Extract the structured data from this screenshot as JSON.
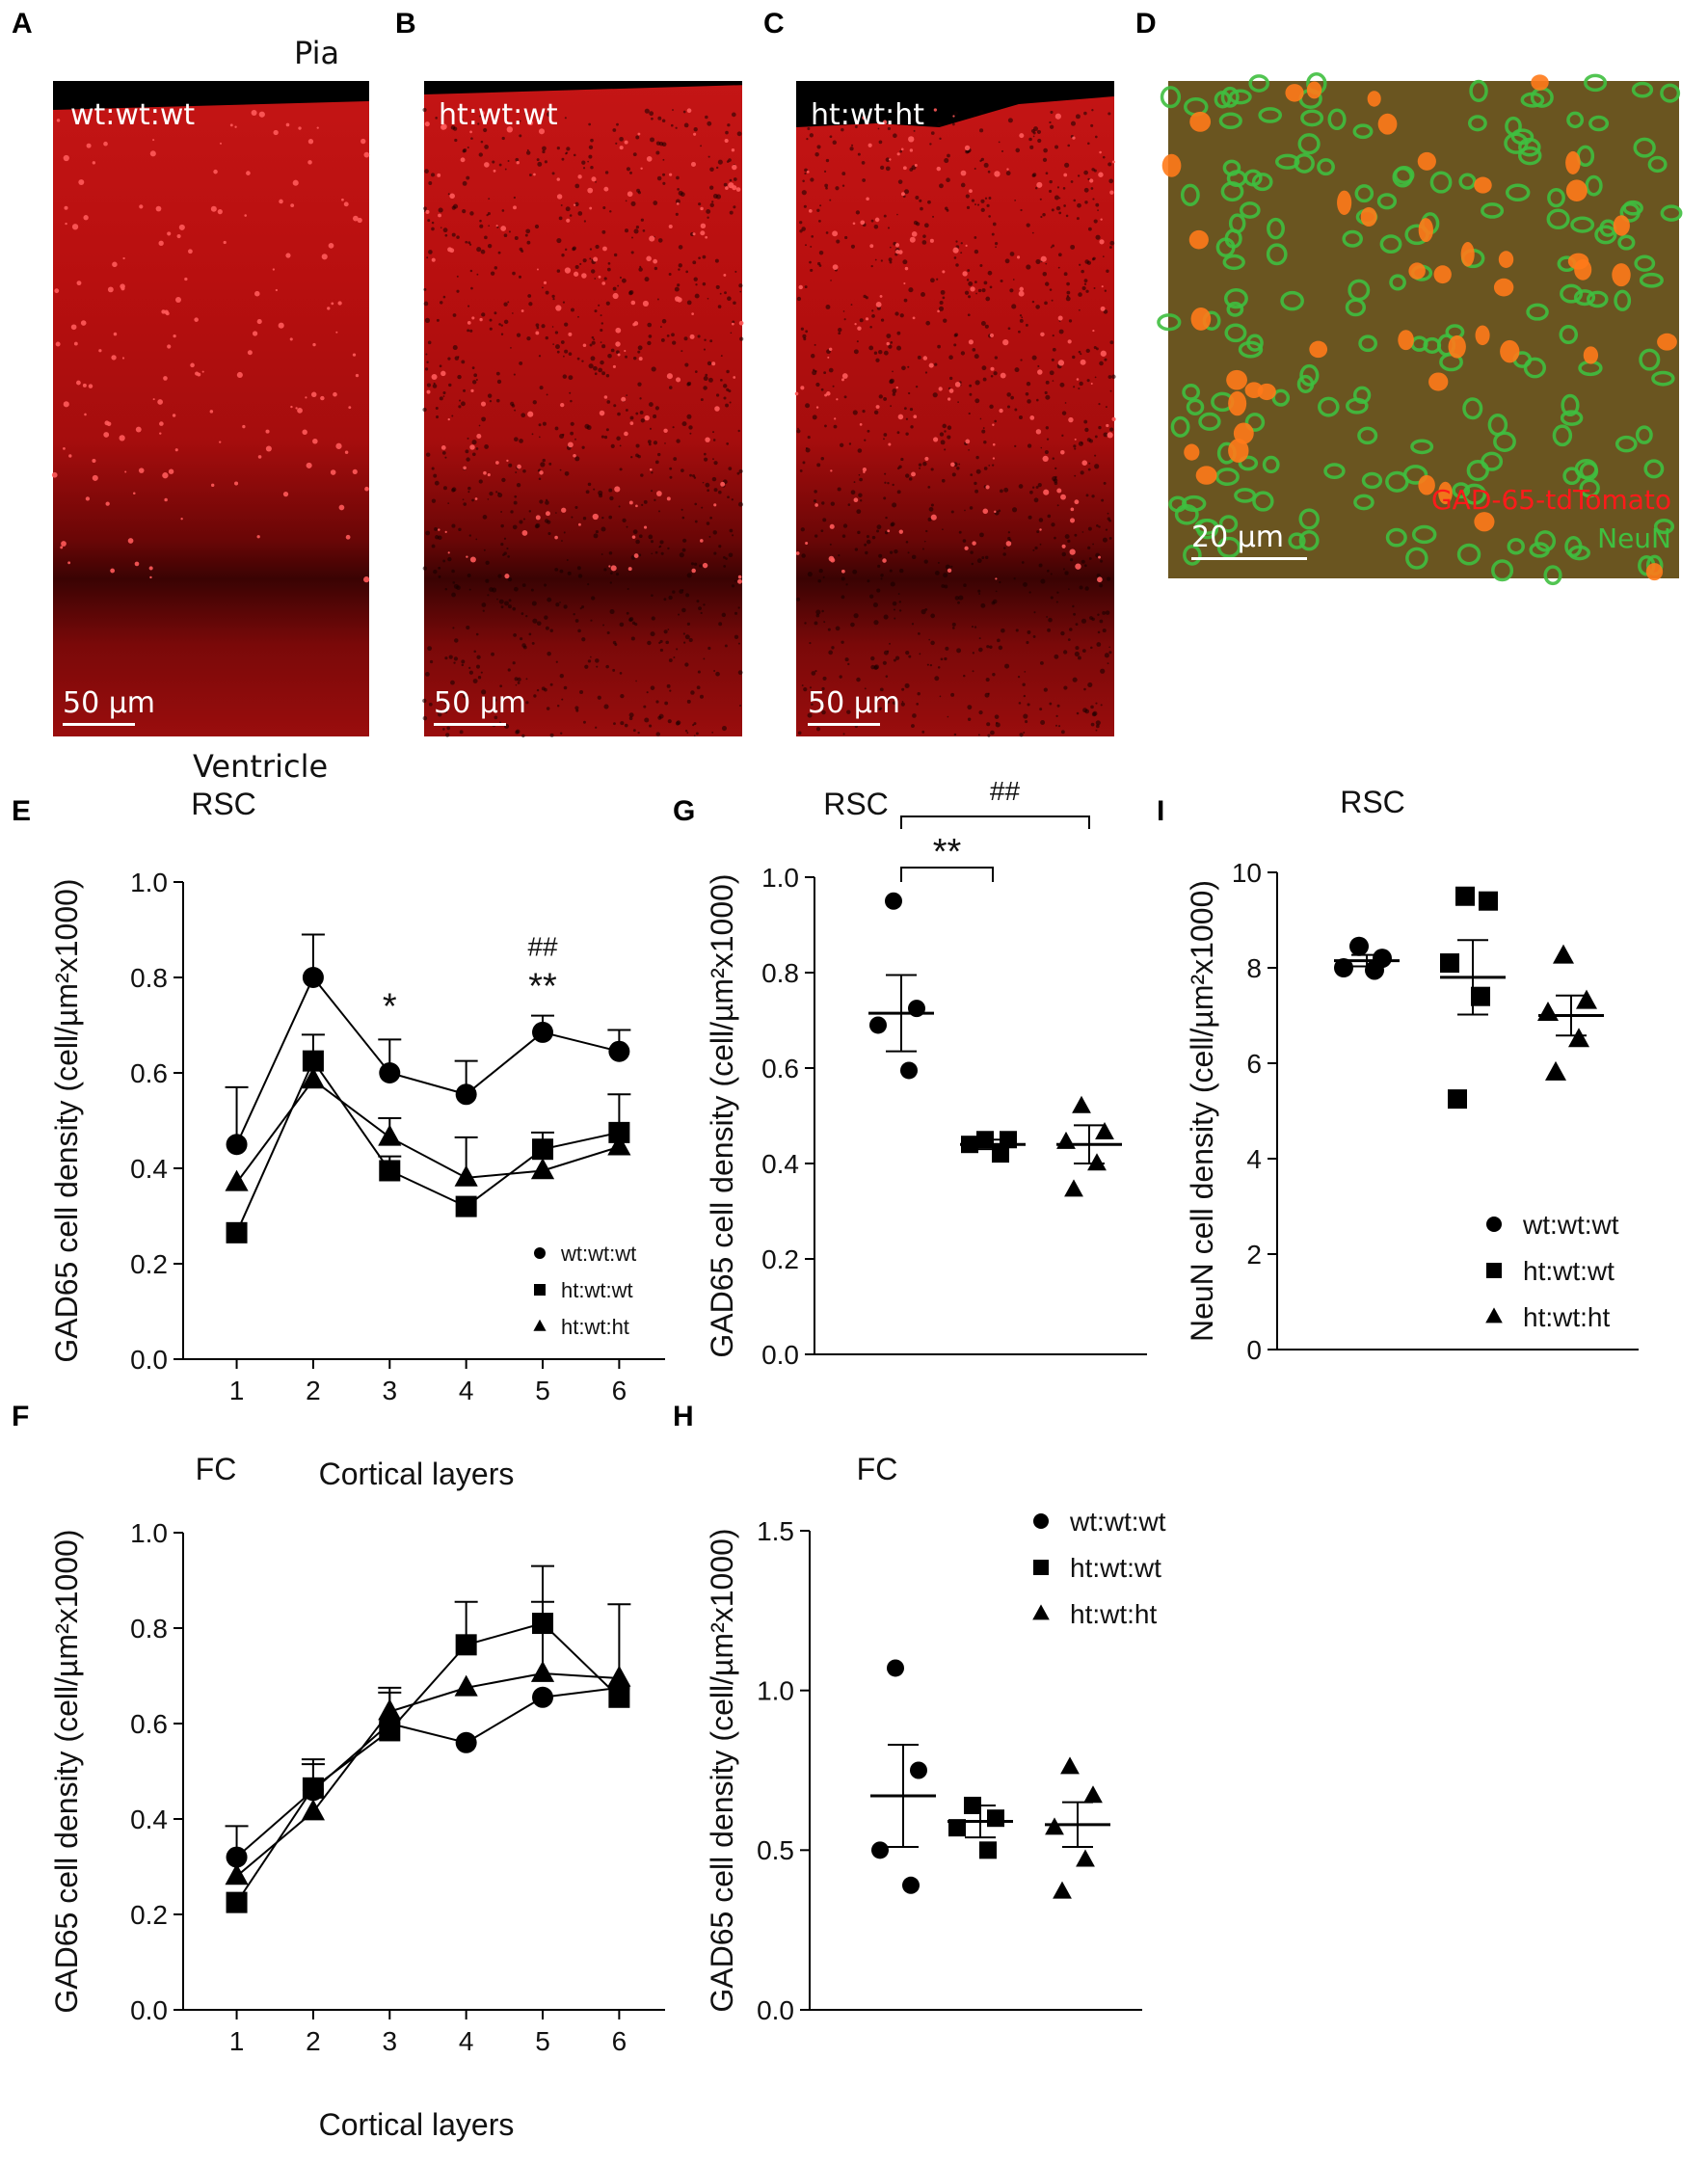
{
  "panels": {
    "A": {
      "letter": "A",
      "label": "wt:wt:wt",
      "scale": "50 µm",
      "top_text": "Pia",
      "bottom_text": "Ventricle"
    },
    "B": {
      "letter": "B",
      "label": "ht:wt:wt",
      "scale": "50 µm"
    },
    "C": {
      "letter": "C",
      "label": "ht:wt:ht",
      "scale": "50 µm"
    },
    "D": {
      "letter": "D",
      "scale": "20 µm",
      "legend_red": "GAD-65-tdTomato",
      "legend_green": "NeuN"
    },
    "E": {
      "letter": "E"
    },
    "F": {
      "letter": "F"
    },
    "G": {
      "letter": "G"
    },
    "H": {
      "letter": "H"
    },
    "I": {
      "letter": "I"
    }
  },
  "colors": {
    "red_stain": "#c41515",
    "green_stain": "#3fbf3f",
    "orange_cells": "#ff7a1a"
  },
  "chart_data": [
    {
      "id": "E",
      "type": "line",
      "title": "RSC",
      "xlabel": "Cortical layers",
      "ylabel": "GAD65 cell density (cell/µm²x1000)",
      "categories": [
        "1",
        "2",
        "3",
        "4",
        "5",
        "6"
      ],
      "ylim": [
        0,
        1.0
      ],
      "yticks": [
        "0.0",
        "0.2",
        "0.4",
        "0.6",
        "0.8",
        "1.0"
      ],
      "series": [
        {
          "name": "wt:wt:wt",
          "marker": "circle",
          "values": [
            0.45,
            0.8,
            0.6,
            0.555,
            0.685,
            0.645
          ],
          "errors": [
            0.12,
            0.09,
            0.07,
            0.07,
            0.035,
            0.045
          ]
        },
        {
          "name": "ht:wt:wt",
          "marker": "square",
          "values": [
            0.265,
            0.625,
            0.395,
            0.32,
            0.44,
            0.475
          ],
          "errors": [
            0.0,
            0.055,
            0.03,
            0.0,
            0.035,
            0.08
          ]
        },
        {
          "name": "ht:wt:ht",
          "marker": "triangle",
          "values": [
            0.37,
            0.585,
            0.465,
            0.38,
            0.395,
            0.445
          ],
          "errors": [
            0.0,
            0.0,
            0.04,
            0.085,
            0.0,
            0.0
          ]
        }
      ],
      "annotations": [
        {
          "x": "3",
          "text": "*"
        },
        {
          "x": "5",
          "text": "**"
        },
        {
          "x": "5",
          "text": "##"
        }
      ],
      "legend": "bottom-right"
    },
    {
      "id": "F",
      "type": "line",
      "title": "FC",
      "xlabel": "Cortical layers",
      "ylabel": "GAD65 cell density (cell/µm²x1000)",
      "categories": [
        "1",
        "2",
        "3",
        "4",
        "5",
        "6"
      ],
      "ylim": [
        0,
        1.0
      ],
      "yticks": [
        "0.0",
        "0.2",
        "0.4",
        "0.6",
        "0.8",
        "1.0"
      ],
      "series": [
        {
          "name": "wt:wt:wt",
          "marker": "circle",
          "values": [
            0.32,
            0.46,
            0.6,
            0.56,
            0.655,
            0.675
          ],
          "errors": [
            0.065,
            0.065,
            0.065,
            0.0,
            0.0,
            0.0
          ]
        },
        {
          "name": "ht:wt:wt",
          "marker": "square",
          "values": [
            0.225,
            0.465,
            0.585,
            0.765,
            0.81,
            0.655
          ],
          "errors": [
            0.0,
            0.05,
            0.0,
            0.09,
            0.12,
            0.0
          ]
        },
        {
          "name": "ht:wt:ht",
          "marker": "triangle",
          "values": [
            0.28,
            0.415,
            0.625,
            0.675,
            0.705,
            0.695
          ],
          "errors": [
            0.0,
            0.0,
            0.05,
            0.0,
            0.15,
            0.155
          ]
        }
      ]
    },
    {
      "id": "G",
      "type": "scatter",
      "title": "RSC",
      "ylabel": "GAD65 cell density (cell/µm²x1000)",
      "ylim": [
        0,
        1.0
      ],
      "yticks": [
        "0.0",
        "0.2",
        "0.4",
        "0.6",
        "0.8",
        "1.0"
      ],
      "groups": [
        {
          "name": "wt:wt:wt",
          "marker": "circle",
          "points": [
            0.95,
            0.725,
            0.69,
            0.595
          ],
          "mean": 0.715,
          "sem": 0.08
        },
        {
          "name": "ht:wt:wt",
          "marker": "square",
          "points": [
            0.45,
            0.45,
            0.44,
            0.42
          ],
          "mean": 0.44,
          "sem": 0.01
        },
        {
          "name": "ht:wt:ht",
          "marker": "triangle",
          "points": [
            0.52,
            0.465,
            0.445,
            0.4,
            0.345
          ],
          "mean": 0.44,
          "sem": 0.04
        }
      ],
      "annotations": [
        {
          "from": "wt:wt:wt",
          "to": "ht:wt:wt",
          "text": "**"
        },
        {
          "from": "wt:wt:wt",
          "to": "ht:wt:ht",
          "text": "##"
        }
      ]
    },
    {
      "id": "H",
      "type": "scatter",
      "title": "FC",
      "ylabel": "GAD65 cell density (cell/µm²x1000)",
      "ylim": [
        0,
        1.5
      ],
      "yticks": [
        "0.0",
        "0.5",
        "1.0",
        "1.5"
      ],
      "groups": [
        {
          "name": "wt:wt:wt",
          "marker": "circle",
          "points": [
            1.07,
            0.75,
            0.5,
            0.39
          ],
          "mean": 0.67,
          "sem": 0.16
        },
        {
          "name": "ht:wt:wt",
          "marker": "square",
          "points": [
            0.64,
            0.6,
            0.57,
            0.5
          ],
          "mean": 0.59,
          "sem": 0.05
        },
        {
          "name": "ht:wt:ht",
          "marker": "triangle",
          "points": [
            0.76,
            0.67,
            0.57,
            0.47,
            0.37
          ],
          "mean": 0.58,
          "sem": 0.07
        }
      ],
      "legend": "top-right"
    },
    {
      "id": "I",
      "type": "scatter",
      "title": "RSC",
      "ylabel": "NeuN cell density (cell/µm²x1000)",
      "ylim": [
        0,
        10
      ],
      "yticks": [
        "0",
        "2",
        "4",
        "6",
        "8",
        "10"
      ],
      "groups": [
        {
          "name": "wt:wt:wt",
          "marker": "circle",
          "points": [
            8.45,
            8.2,
            8.0,
            7.95
          ],
          "mean": 8.15,
          "sem": 0.12
        },
        {
          "name": "ht:wt:wt",
          "marker": "square",
          "points": [
            9.5,
            9.4,
            8.1,
            7.4,
            5.25
          ],
          "mean": 7.8,
          "sem": 0.78
        },
        {
          "name": "ht:wt:ht",
          "marker": "triangle",
          "points": [
            8.25,
            7.3,
            7.05,
            6.5,
            5.8
          ],
          "mean": 7.0,
          "sem": 0.42
        }
      ],
      "legend": "bottom-right"
    }
  ]
}
